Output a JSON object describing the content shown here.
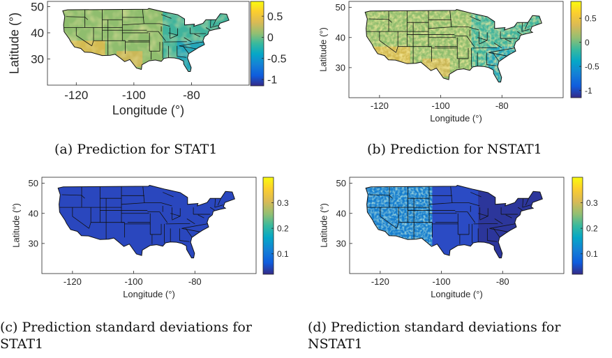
{
  "chart_data": [
    {
      "type": "heatmap",
      "panel": "a",
      "caption": "(a) Prediction for STAT1",
      "xlabel": "Longitude (°)",
      "ylabel": "Latitude (°)",
      "xlim": [
        -130,
        -60
      ],
      "ylim": [
        20,
        52
      ],
      "xticks": [
        "-120",
        "-100",
        "-80"
      ],
      "xtick_values": [
        -120,
        -100,
        -80
      ],
      "yticks": [
        "30",
        "40",
        "50"
      ],
      "ytick_values": [
        30,
        40,
        50
      ],
      "colorbar": {
        "range": [
          -1.15,
          0.85
        ],
        "ticks": [
          "0.5",
          "0",
          "-0.5",
          "-1"
        ],
        "tick_values": [
          0.5,
          0,
          -0.5,
          -1
        ]
      },
      "pattern": "smooth-low-variance"
    },
    {
      "type": "heatmap",
      "panel": "b",
      "caption": "(b) Prediction for NSTAT1",
      "xlabel": "Longitude (°)",
      "ylabel": "Latitude (°)",
      "xlim": [
        -130,
        -60
      ],
      "ylim": [
        20,
        52
      ],
      "xticks": [
        "-120",
        "-100",
        "-80"
      ],
      "xtick_values": [
        -120,
        -100,
        -80
      ],
      "yticks": [
        "30",
        "40",
        "50"
      ],
      "ytick_values": [
        30,
        40,
        50
      ],
      "colorbar": {
        "range": [
          -1.15,
          0.85
        ],
        "ticks": [
          "0.5",
          "0",
          "-0.5",
          "-1"
        ],
        "tick_values": [
          0.5,
          0,
          -0.5,
          -1
        ]
      },
      "pattern": "high-variance-west"
    },
    {
      "type": "heatmap",
      "panel": "c",
      "caption": "(c) Prediction standard deviations for STAT1",
      "xlabel": "Longitude (°)",
      "ylabel": "Latitude (°)",
      "xlim": [
        -130,
        -60
      ],
      "ylim": [
        20,
        52
      ],
      "xticks": [
        "-120",
        "-100",
        "-80"
      ],
      "xtick_values": [
        -120,
        -100,
        -80
      ],
      "yticks": [
        "30",
        "40",
        "50"
      ],
      "ytick_values": [
        30,
        40,
        50
      ],
      "colorbar": {
        "range": [
          0.02,
          0.4
        ],
        "ticks": [
          "0.3",
          "0.2",
          "0.1"
        ],
        "tick_values": [
          0.3,
          0.2,
          0.1
        ]
      },
      "pattern": "uniform-low"
    },
    {
      "type": "heatmap",
      "panel": "d",
      "caption": "(d) Prediction standard deviations for NSTAT1",
      "xlabel": "Longitude (°)",
      "ylabel": "Latitude (°)",
      "xlim": [
        -130,
        -60
      ],
      "ylim": [
        20,
        52
      ],
      "xticks": [
        "-120",
        "-100",
        "-80"
      ],
      "xtick_values": [
        -120,
        -100,
        -80
      ],
      "yticks": [
        "30",
        "40",
        "50"
      ],
      "ytick_values": [
        30,
        40,
        50
      ],
      "colorbar": {
        "range": [
          0.02,
          0.4
        ],
        "ticks": [
          "0.3",
          "0.2",
          "0.1"
        ],
        "tick_values": [
          0.3,
          0.2,
          0.1
        ]
      },
      "pattern": "higher-west"
    }
  ],
  "captions": {
    "a": "(a) Prediction for STAT1",
    "b": "(b) Prediction for NSTAT1",
    "c_line1": "(c) Prediction standard deviations for",
    "c_line2": "STAT1",
    "d_line1": "(d) Prediction standard deviations for",
    "d_line2": "NSTAT1"
  }
}
